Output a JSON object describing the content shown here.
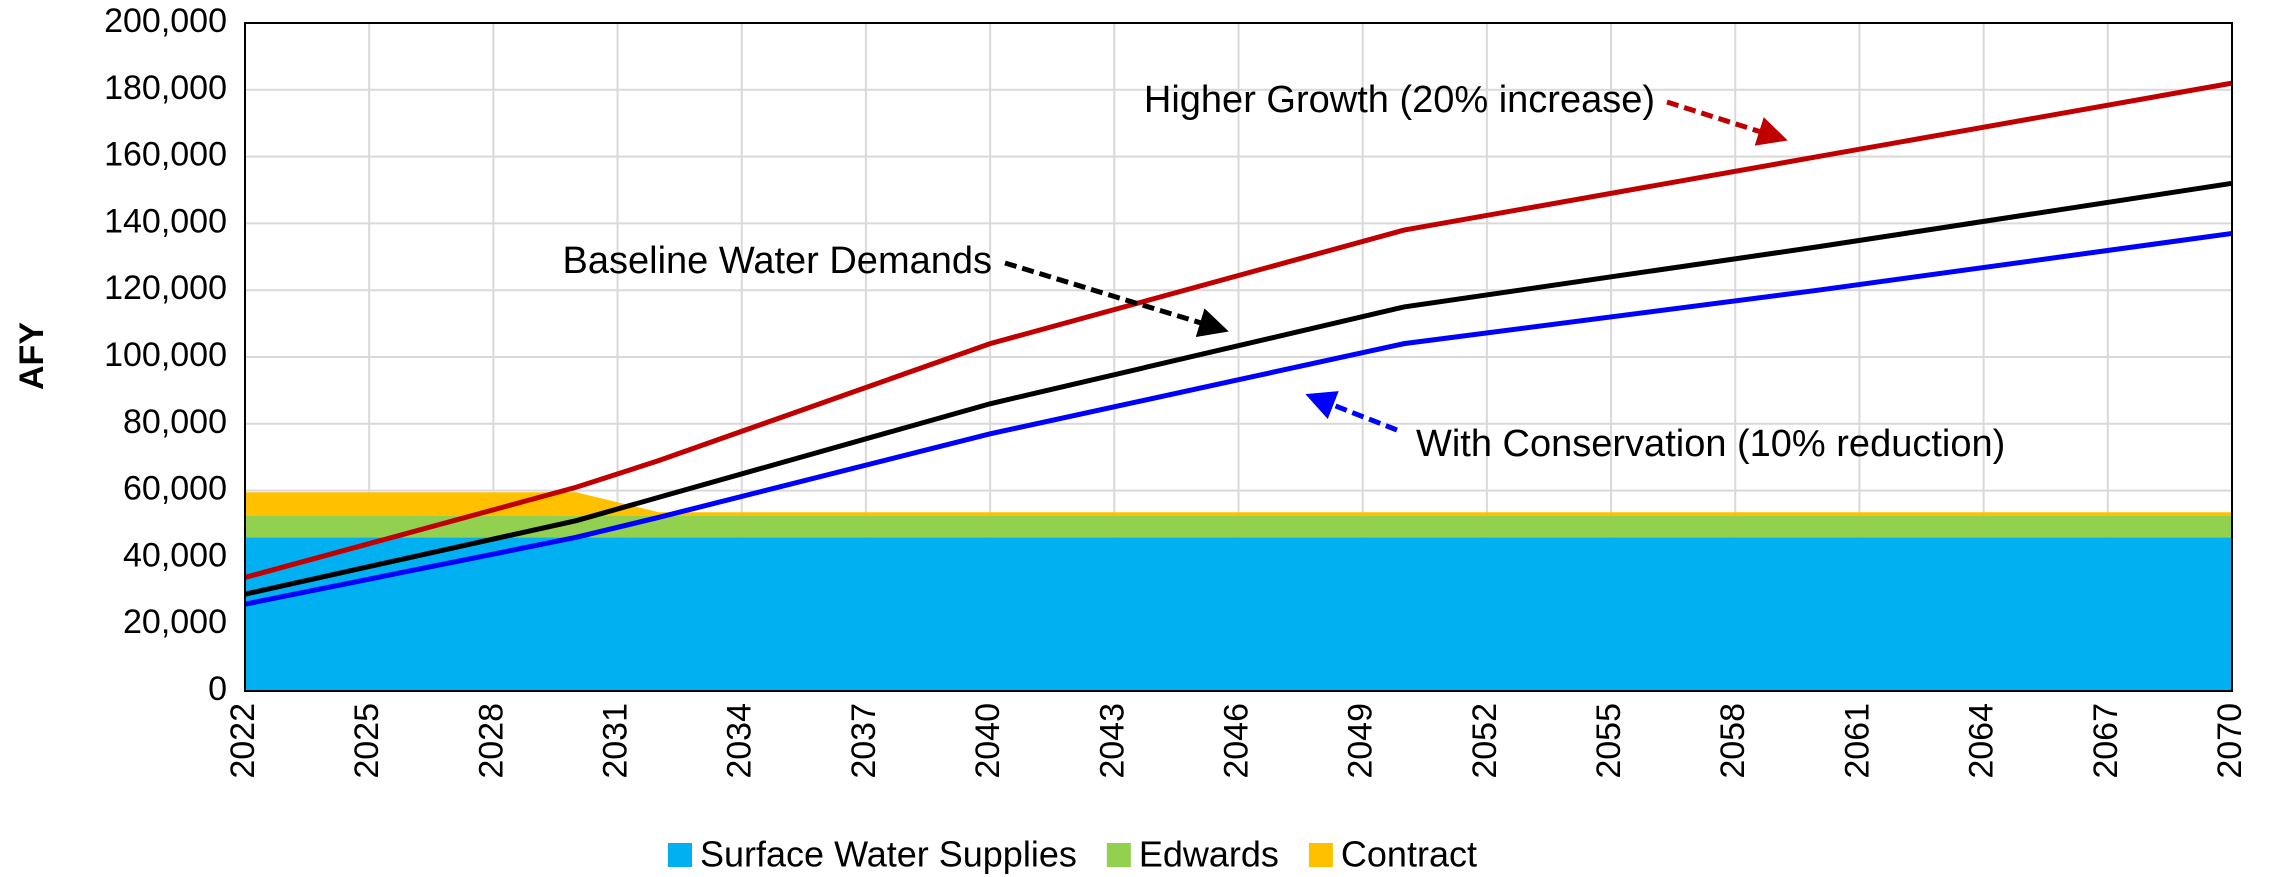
{
  "chart_data": {
    "type": "area",
    "ylabel": "AFY",
    "x": [
      2022,
      2030,
      2032,
      2040,
      2050,
      2060,
      2070
    ],
    "xlim": [
      2022,
      2070
    ],
    "xticks": [
      2022,
      2025,
      2028,
      2031,
      2034,
      2037,
      2040,
      2043,
      2046,
      2049,
      2052,
      2055,
      2058,
      2061,
      2064,
      2067,
      2070
    ],
    "ylim": [
      0,
      200000
    ],
    "yticks": [
      0,
      {
        "value": 20000,
        "label": "20,000"
      },
      {
        "value": 40000,
        "label": "40,000"
      },
      {
        "value": 60000,
        "label": "60,000"
      },
      {
        "value": 80000,
        "label": "80,000"
      },
      {
        "value": 100000,
        "label": "100,000"
      },
      {
        "value": 120000,
        "label": "120,000"
      },
      {
        "value": 140000,
        "label": "140,000"
      },
      {
        "value": 160000,
        "label": "160,000"
      },
      {
        "value": 180000,
        "label": "180,000"
      },
      {
        "value": 200000,
        "label": "200,000"
      }
    ],
    "grid": true,
    "legend": "bottom",
    "series": [
      {
        "name": "Surface Water Supplies",
        "type": "area",
        "color": "#00b0f0",
        "values": [
          46000,
          46000,
          46000,
          46000,
          46000,
          46000,
          46000
        ]
      },
      {
        "name": "Edwards",
        "type": "area",
        "color": "#92d050",
        "values": [
          6500,
          6500,
          6500,
          6500,
          6500,
          6500,
          6500
        ]
      },
      {
        "name": "Contract",
        "type": "area",
        "color": "#ffc000",
        "values": [
          7000,
          7000,
          1000,
          1000,
          1000,
          1000,
          1000
        ]
      },
      {
        "name": "Higher Growth (20% increase)",
        "type": "line",
        "color": "#c00000",
        "values": [
          34000,
          61000,
          69000,
          104000,
          138000,
          160000,
          182000
        ]
      },
      {
        "name": "Baseline Water Demands",
        "type": "line",
        "color": "#000000",
        "values": [
          29000,
          51000,
          58000,
          86000,
          115000,
          133000,
          152000
        ]
      },
      {
        "name": "With Conservation (10% reduction)",
        "type": "line",
        "color": "#0000ff",
        "values": [
          26000,
          46000,
          52000,
          77000,
          104000,
          120000,
          137000
        ]
      }
    ]
  }
}
